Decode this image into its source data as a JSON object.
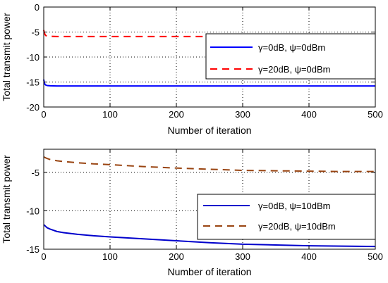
{
  "chart_data": [
    {
      "type": "line",
      "title": "",
      "xlabel": "Number of iteration",
      "ylabel": "Total transmit power",
      "xlim": [
        0,
        500
      ],
      "ylim": [
        -20,
        0
      ],
      "xticks": [
        0,
        100,
        200,
        300,
        400,
        500
      ],
      "yticks": [
        0,
        -5,
        -10,
        -15,
        -20
      ],
      "grid": true,
      "legend_position": "right",
      "series": [
        {
          "name": "γ=0dB, ψ=0dBm",
          "color": "#0000ff",
          "style": "solid",
          "x": [
            0,
            1,
            2,
            3,
            5,
            10,
            20,
            50,
            100,
            200,
            300,
            400,
            500
          ],
          "y": [
            -14.5,
            -15.2,
            -15.5,
            -15.6,
            -15.7,
            -15.75,
            -15.8,
            -15.8,
            -15.8,
            -15.8,
            -15.8,
            -15.8,
            -15.8
          ]
        },
        {
          "name": "γ=20dB, ψ=0dBm",
          "color": "#ff0000",
          "style": "dashed",
          "x": [
            0,
            1,
            2,
            3,
            5,
            10,
            20,
            50,
            100,
            200,
            300,
            400,
            500
          ],
          "y": [
            -4.6,
            -5.2,
            -5.5,
            -5.7,
            -5.8,
            -5.85,
            -5.9,
            -5.9,
            -5.9,
            -5.9,
            -5.9,
            -5.9,
            -5.9
          ]
        }
      ]
    },
    {
      "type": "line",
      "title": "",
      "xlabel": "Number of iteration",
      "ylabel": "Total transmit power",
      "xlim": [
        0,
        500
      ],
      "ylim": [
        -15,
        -2
      ],
      "xticks": [
        0,
        100,
        200,
        300,
        400,
        500
      ],
      "yticks": [
        -5,
        -10,
        -15
      ],
      "grid": true,
      "legend_position": "bottom-right",
      "series": [
        {
          "name": "γ=0dB, ψ=10dBm",
          "color": "#0000cc",
          "style": "solid",
          "x": [
            0,
            5,
            10,
            20,
            30,
            50,
            75,
            100,
            150,
            200,
            250,
            300,
            350,
            400,
            450,
            500
          ],
          "y": [
            -11.8,
            -12.2,
            -12.4,
            -12.7,
            -12.85,
            -13.05,
            -13.25,
            -13.4,
            -13.65,
            -13.9,
            -14.15,
            -14.35,
            -14.45,
            -14.55,
            -14.6,
            -14.65
          ]
        },
        {
          "name": "γ=20dB, ψ=10dBm",
          "color": "#994411",
          "style": "dashed",
          "x": [
            0,
            5,
            10,
            20,
            30,
            50,
            75,
            100,
            150,
            200,
            250,
            300,
            350,
            400,
            450,
            500
          ],
          "y": [
            -3.0,
            -3.2,
            -3.35,
            -3.5,
            -3.6,
            -3.75,
            -3.9,
            -4.0,
            -4.25,
            -4.45,
            -4.6,
            -4.75,
            -4.8,
            -4.85,
            -4.9,
            -4.9
          ]
        }
      ]
    }
  ]
}
